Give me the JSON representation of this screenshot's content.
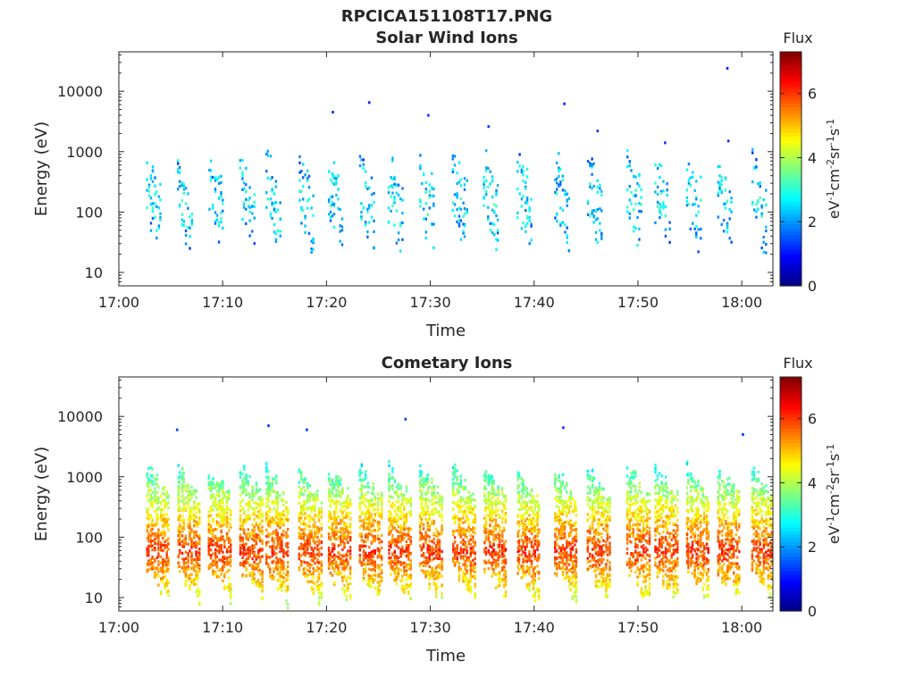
{
  "figure": {
    "title": "RPCICA151108T17.PNG"
  },
  "chart_data": [
    {
      "type": "heatmap",
      "title": "Solar Wind Ions",
      "xlabel": "Time",
      "ylabel": "Energy (eV)",
      "x_ticks": [
        "17:00",
        "17:10",
        "17:20",
        "17:30",
        "17:40",
        "17:50",
        "18:00"
      ],
      "x_tick_minutes": [
        0,
        10,
        20,
        30,
        40,
        50,
        60
      ],
      "xlim_minutes": [
        0,
        63
      ],
      "y_scale": "log",
      "ylim": [
        6,
        45000
      ],
      "y_ticks": [
        "10",
        "100",
        "1000",
        "10000"
      ],
      "y_tick_values": [
        10,
        100,
        1000,
        10000
      ],
      "colorbar": {
        "label": "Flux",
        "unit_text": [
          "eV",
          "-1",
          "cm",
          "-2",
          "sr",
          "-1",
          "s",
          "-1"
        ],
        "ticks": [
          "0",
          "2",
          "4",
          "6"
        ],
        "tick_values": [
          0,
          2,
          4,
          6
        ],
        "range": [
          0,
          7.3
        ],
        "colormap": "jet"
      },
      "scan_minutes": [
        3.5,
        6.5,
        9.5,
        12.5,
        15,
        18.2,
        21,
        24,
        26.8,
        29.8,
        33,
        36,
        39.2,
        42.8,
        46,
        49.8,
        52.5,
        55.5,
        58.5,
        61.8
      ],
      "flux_typical": 2.6,
      "energy_peak_ev": 150,
      "sparse": true,
      "isolated_points": [
        {
          "minute": 20.5,
          "energy": 4500,
          "flux": 1.2
        },
        {
          "minute": 24.0,
          "energy": 6500,
          "flux": 1.2
        },
        {
          "minute": 29.7,
          "energy": 4000,
          "flux": 1.3
        },
        {
          "minute": 35.5,
          "energy": 2600,
          "flux": 1.3
        },
        {
          "minute": 42.8,
          "energy": 6200,
          "flux": 1.2
        },
        {
          "minute": 46.0,
          "energy": 2200,
          "flux": 1.3
        },
        {
          "minute": 52.5,
          "energy": 1400,
          "flux": 1.3
        },
        {
          "minute": 58.5,
          "energy": 24000,
          "flux": 1.1
        },
        {
          "minute": 58.6,
          "energy": 1500,
          "flux": 1.3
        }
      ]
    },
    {
      "type": "heatmap",
      "title": "Cometary Ions",
      "xlabel": "Time",
      "ylabel": "Energy (eV)",
      "x_ticks": [
        "17:00",
        "17:10",
        "17:20",
        "17:30",
        "17:40",
        "17:50",
        "18:00"
      ],
      "x_tick_minutes": [
        0,
        10,
        20,
        30,
        40,
        50,
        60
      ],
      "xlim_minutes": [
        0,
        63
      ],
      "y_scale": "log",
      "ylim": [
        6,
        45000
      ],
      "y_ticks": [
        "10",
        "100",
        "1000",
        "10000"
      ],
      "y_tick_values": [
        10,
        100,
        1000,
        10000
      ],
      "colorbar": {
        "label": "Flux",
        "unit_text": [
          "eV",
          "-1",
          "cm",
          "-2",
          "sr",
          "-1",
          "s",
          "-1"
        ],
        "ticks": [
          "0",
          "2",
          "4",
          "6"
        ],
        "tick_values": [
          0,
          2,
          4,
          6
        ],
        "range": [
          0,
          7.3
        ],
        "colormap": "jet"
      },
      "scan_minutes": [
        3.5,
        6.5,
        9.5,
        12.5,
        15,
        18.2,
        21,
        24,
        26.8,
        29.8,
        33,
        36,
        39.2,
        42.8,
        46,
        49.8,
        52.5,
        55.5,
        58.5,
        61.8
      ],
      "flux_typical": 4.6,
      "flux_peak": 6.0,
      "energy_peak_ev": 60,
      "sparse": false,
      "isolated_points": [
        {
          "minute": 5.5,
          "energy": 6000,
          "flux": 1.4
        },
        {
          "minute": 14.3,
          "energy": 7000,
          "flux": 1.3
        },
        {
          "minute": 18.0,
          "energy": 6000,
          "flux": 1.3
        },
        {
          "minute": 27.5,
          "energy": 9000,
          "flux": 1.4
        },
        {
          "minute": 42.7,
          "energy": 6500,
          "flux": 1.3
        },
        {
          "minute": 60.0,
          "energy": 5000,
          "flux": 1.3
        }
      ]
    }
  ]
}
